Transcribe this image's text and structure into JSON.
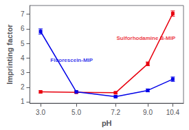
{
  "chart_data": {
    "type": "line",
    "xlabel": "pH",
    "ylabel": "Imprinting factor",
    "x": [
      3.0,
      5.0,
      7.2,
      9.0,
      10.4
    ],
    "series": [
      {
        "color": "#e8000e",
        "marker": "square",
        "values": [
          1.68,
          1.65,
          1.62,
          3.6,
          7.05
        ],
        "yerr": [
          0.07,
          0.06,
          0.07,
          0.13,
          0.18
        ]
      },
      {
        "color": "#0000e8",
        "marker": "square",
        "values": [
          5.82,
          1.68,
          1.35,
          1.78,
          2.55
        ],
        "yerr": [
          0.18,
          0.07,
          0.07,
          0.1,
          0.15
        ]
      }
    ],
    "annotations": [
      {
        "text": "Sulforhodamine B-MIP",
        "x": 7.25,
        "y": 5.35,
        "color": "#e8000e"
      },
      {
        "text": "Fluorescein-MIP",
        "x": 3.55,
        "y": 3.85,
        "color": "#0000e8"
      }
    ],
    "xlim": [
      2.4,
      11.0
    ],
    "xticks": [
      {
        "value": 3.0,
        "label": "3.0"
      },
      {
        "value": 5.0,
        "label": "5.0"
      },
      7.2,
      {
        "value": 9.0,
        "label": "9.0"
      },
      10.4
    ],
    "ylim": [
      0.9,
      7.6
    ],
    "yticks": [
      1,
      2,
      3,
      4,
      5,
      6,
      7
    ],
    "grid": false
  }
}
